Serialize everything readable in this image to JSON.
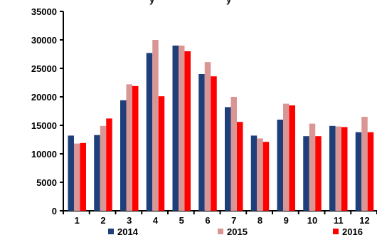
{
  "chart_data": {
    "type": "bar",
    "categories": [
      "1",
      "2",
      "3",
      "4",
      "5",
      "6",
      "7",
      "8",
      "9",
      "10",
      "11",
      "12"
    ],
    "series": [
      {
        "name": "2014",
        "color": "#1f3f7a",
        "values": [
          13200,
          13300,
          19400,
          27700,
          29000,
          24000,
          18200,
          13200,
          16000,
          13100,
          14900,
          13800
        ]
      },
      {
        "name": "2015",
        "color": "#d99694",
        "values": [
          11800,
          14900,
          22200,
          30000,
          29000,
          26100,
          20000,
          12700,
          18800,
          15300,
          14800,
          16500
        ]
      },
      {
        "name": "2016",
        "color": "#ff0000",
        "values": [
          11900,
          16200,
          21900,
          20100,
          28000,
          23600,
          15600,
          12100,
          18500,
          13100,
          14700,
          13800
        ]
      }
    ],
    "y_ticks": [
      "0",
      "5000",
      "10000",
      "15000",
      "20000",
      "25000",
      "30000",
      "35000"
    ],
    "ylim": [
      0,
      35000
    ],
    "grid": false,
    "legend_placement": "bottom",
    "title": "",
    "xlabel": "",
    "ylabel": ""
  }
}
